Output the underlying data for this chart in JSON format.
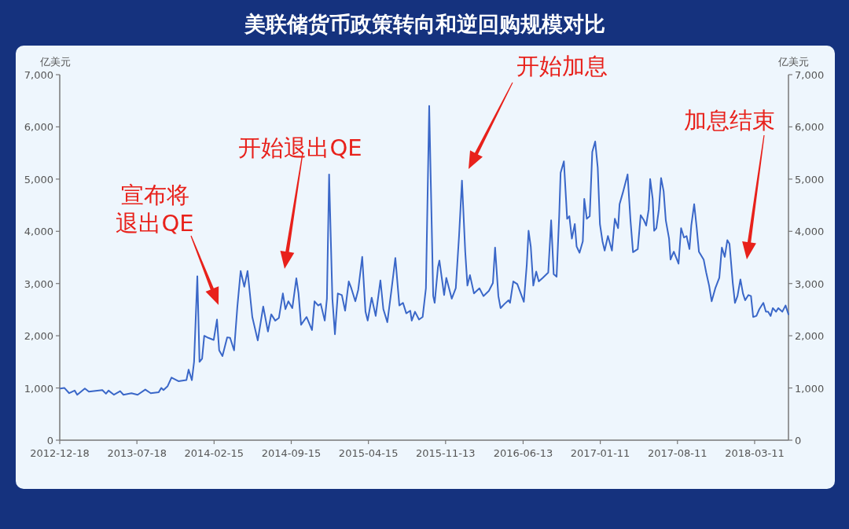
{
  "chart_data": {
    "type": "line",
    "title": "美联储货币政策转向和逆回购规模对比",
    "ylabel": "亿美元",
    "y2label": "亿美元",
    "x": [
      "2012-12-20",
      "2012-12-31",
      "2013-01-13",
      "2013-01-28",
      "2013-02-04",
      "2013-02-25",
      "2013-03-08",
      "2013-04-14",
      "2013-04-24",
      "2013-05-01",
      "2013-05-16",
      "2013-06-02",
      "2013-06-11",
      "2013-07-03",
      "2013-07-20",
      "2013-08-10",
      "2013-08-25",
      "2013-09-16",
      "2013-09-23",
      "2013-09-29",
      "2013-10-10",
      "2013-10-21",
      "2013-11-09",
      "2013-12-01",
      "2013-12-07",
      "2013-12-16",
      "2013-12-22",
      "2013-12-31",
      "2014-01-06",
      "2014-01-13",
      "2014-01-19",
      "2014-01-30",
      "2014-02-14",
      "2014-02-23",
      "2014-03-01",
      "2014-03-10",
      "2014-03-23",
      "2014-03-31",
      "2014-04-11",
      "2014-04-20",
      "2014-04-29",
      "2014-05-09",
      "2014-05-18",
      "2014-05-31",
      "2014-06-15",
      "2014-06-30",
      "2014-07-13",
      "2014-07-22",
      "2014-08-02",
      "2014-08-12",
      "2014-08-23",
      "2014-08-30",
      "2014-09-07",
      "2014-09-18",
      "2014-09-29",
      "2014-10-05",
      "2014-10-12",
      "2014-10-27",
      "2014-11-11",
      "2014-11-18",
      "2014-11-28",
      "2014-12-05",
      "2014-12-16",
      "2014-12-22",
      "2014-12-28",
      "2015-01-06",
      "2015-01-13",
      "2015-01-21",
      "2015-02-01",
      "2015-02-10",
      "2015-02-20",
      "2015-02-27",
      "2015-03-10",
      "2015-03-18",
      "2015-03-29",
      "2015-04-07",
      "2015-04-13",
      "2015-04-24",
      "2015-05-05",
      "2015-05-18",
      "2015-05-26",
      "2015-06-06",
      "2015-06-17",
      "2015-06-28",
      "2015-07-09",
      "2015-07-19",
      "2015-07-28",
      "2015-08-08",
      "2015-08-12",
      "2015-08-21",
      "2015-09-01",
      "2015-09-11",
      "2015-09-20",
      "2015-09-29",
      "2015-10-10",
      "2015-10-14",
      "2015-10-23",
      "2015-10-27",
      "2015-11-09",
      "2015-11-15",
      "2015-11-30",
      "2015-12-11",
      "2015-12-20",
      "2015-12-28",
      "2016-01-06",
      "2016-01-12",
      "2016-01-19",
      "2016-01-30",
      "2016-02-14",
      "2016-02-25",
      "2016-03-11",
      "2016-03-22",
      "2016-03-28",
      "2016-04-06",
      "2016-04-12",
      "2016-04-23",
      "2016-05-04",
      "2016-05-08",
      "2016-05-17",
      "2016-05-28",
      "2016-06-15",
      "2016-06-23",
      "2016-06-28",
      "2016-07-04",
      "2016-07-11",
      "2016-07-19",
      "2016-07-26",
      "2016-08-06",
      "2016-08-21",
      "2016-08-29",
      "2016-09-05",
      "2016-09-13",
      "2016-09-20",
      "2016-09-24",
      "2016-10-03",
      "2016-10-12",
      "2016-10-18",
      "2016-10-25",
      "2016-11-02",
      "2016-11-07",
      "2016-11-15",
      "2016-11-24",
      "2016-11-28",
      "2016-12-05",
      "2016-12-13",
      "2016-12-20",
      "2016-12-28",
      "2017-01-04",
      "2017-01-10",
      "2017-01-17",
      "2017-01-23",
      "2017-02-01",
      "2017-02-12",
      "2017-02-20",
      "2017-03-01",
      "2017-03-05",
      "2017-03-14",
      "2017-03-27",
      "2017-04-04",
      "2017-04-11",
      "2017-04-24",
      "2017-05-02",
      "2017-05-11",
      "2017-05-17",
      "2017-05-24",
      "2017-05-28",
      "2017-06-04",
      "2017-06-08",
      "2017-06-14",
      "2017-06-21",
      "2017-06-27",
      "2017-07-04",
      "2017-07-10",
      "2017-07-19",
      "2017-07-23",
      "2017-08-01",
      "2017-08-14",
      "2017-08-21",
      "2017-08-29",
      "2017-09-05",
      "2017-09-13",
      "2017-09-18",
      "2017-09-26",
      "2017-10-03",
      "2017-10-09",
      "2017-10-22",
      "2017-10-29",
      "2017-11-06",
      "2017-11-13",
      "2017-11-23",
      "2017-12-04",
      "2017-12-11",
      "2017-12-19",
      "2017-12-26",
      "2018-01-01",
      "2018-01-10",
      "2018-01-16",
      "2018-01-23",
      "2018-01-31",
      "2018-02-07",
      "2018-02-13",
      "2018-02-22",
      "2018-03-01",
      "2018-03-07",
      "2018-03-16",
      "2018-03-24",
      "2018-04-04",
      "2018-04-11",
      "2018-04-17",
      "2018-04-24",
      "2018-04-30",
      "2018-05-09",
      "2018-05-15",
      "2018-05-26",
      "2018-06-04",
      "2018-06-12"
    ],
    "series": [
      {
        "color": "#3a67c8",
        "values": [
          990,
          1000,
          900,
          950,
          870,
          990,
          930,
          960,
          890,
          950,
          870,
          940,
          870,
          900,
          870,
          970,
          900,
          920,
          1000,
          960,
          1030,
          1200,
          1130,
          1150,
          1350,
          1150,
          1500,
          3140,
          1500,
          1560,
          2000,
          1960,
          1920,
          2310,
          1720,
          1610,
          1970,
          1960,
          1720,
          2560,
          3240,
          2940,
          3240,
          2360,
          1910,
          2560,
          2080,
          2410,
          2290,
          2340,
          2810,
          2510,
          2660,
          2530,
          3100,
          2810,
          2210,
          2360,
          2110,
          2660,
          2580,
          2610,
          2290,
          2710,
          5090,
          2710,
          2030,
          2810,
          2780,
          2480,
          3040,
          2910,
          2660,
          2880,
          3510,
          2460,
          2290,
          2730,
          2380,
          3060,
          2510,
          2260,
          2860,
          3490,
          2580,
          2630,
          2430,
          2480,
          2290,
          2460,
          2310,
          2360,
          2910,
          6400,
          2760,
          2630,
          3310,
          3440,
          2780,
          3110,
          2710,
          2910,
          3910,
          4970,
          3610,
          2960,
          3160,
          2810,
          2910,
          2760,
          2860,
          3010,
          3690,
          2760,
          2530,
          2610,
          2680,
          2630,
          3040,
          2990,
          2650,
          3360,
          4010,
          3710,
          2960,
          3230,
          3040,
          3110,
          3210,
          4210,
          3180,
          3130,
          4280,
          5120,
          5340,
          4240,
          4290,
          3860,
          4140,
          3710,
          3590,
          3810,
          4620,
          4240,
          4290,
          5520,
          5720,
          5220,
          4140,
          3810,
          3630,
          3910,
          3630,
          4240,
          4060,
          4520,
          4740,
          5090,
          4210,
          3600,
          3660,
          4310,
          4210,
          4110,
          4420,
          5000,
          4620,
          4010,
          4060,
          4420,
          5020,
          4770,
          4210,
          3860,
          3460,
          3610,
          3380,
          4060,
          3880,
          3910,
          3660,
          4110,
          4520,
          4060,
          3610,
          3460,
          3210,
          2960,
          2660,
          2910,
          3110,
          3690,
          3510,
          3830,
          3760,
          3010,
          2630,
          2760,
          3080,
          2810,
          2680,
          2780,
          2760,
          2360,
          2380,
          2510,
          2630,
          2460,
          2460,
          2380,
          2530,
          2460,
          2530,
          2460,
          2580,
          2410
        ]
      }
    ],
    "xlim": [
      "2012-12-18",
      "2018-06-12"
    ],
    "xticks": [
      "2012-12-18",
      "2013-07-18",
      "2014-02-15",
      "2014-09-15",
      "2015-04-15",
      "2015-11-13",
      "2016-06-13",
      "2017-01-11",
      "2017-08-11",
      "2018-03-11"
    ],
    "ylim": [
      0,
      7000
    ],
    "yticks": [
      0,
      {
        "value": 1000,
        "label": "1,000"
      },
      {
        "value": 2000,
        "label": "2,000"
      },
      {
        "value": 3000,
        "label": "3,000"
      },
      {
        "value": 4000,
        "label": "4,000"
      },
      {
        "value": 5000,
        "label": "5,000"
      },
      {
        "value": 6000,
        "label": "6,000"
      },
      {
        "value": 7000,
        "label": "7,000"
      }
    ],
    "y2lim": [
      0,
      7000
    ],
    "y2ticks": [
      0,
      {
        "value": 1000,
        "label": "1,000"
      },
      {
        "value": 2000,
        "label": "2,000"
      },
      {
        "value": 3000,
        "label": "3,000"
      },
      {
        "value": 4000,
        "label": "4,000"
      },
      {
        "value": 5000,
        "label": "5,000"
      },
      {
        "value": 6000,
        "label": "6,000"
      },
      {
        "value": 7000,
        "label": "7,000"
      }
    ],
    "annotations": [
      "宣布将退出QE",
      "开始退出QE",
      "开始加息",
      "加息结束"
    ]
  }
}
